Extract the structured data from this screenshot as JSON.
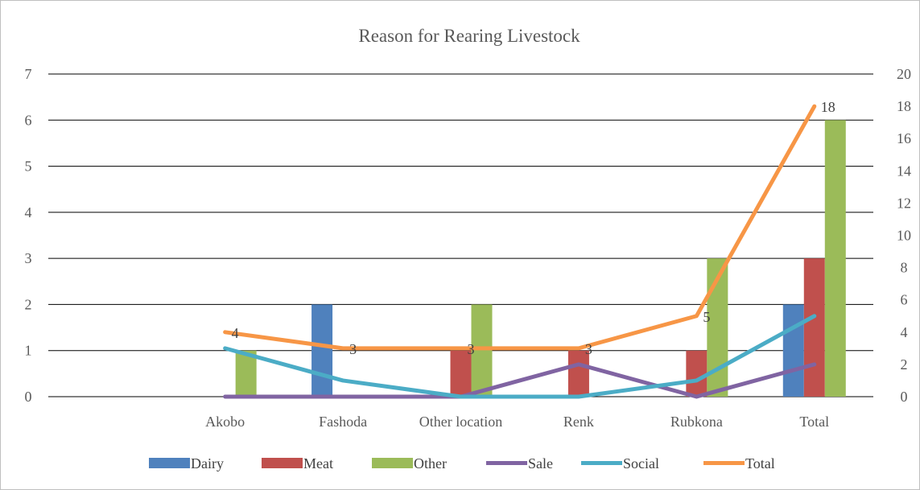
{
  "chart_data": {
    "type": "bar",
    "title": "Reason for Rearing Livestock",
    "categories": [
      "",
      "Akobo",
      "Fashoda",
      "Other location",
      "Renk",
      "Rubkona",
      "Total"
    ],
    "primary_axis": {
      "ylim": [
        0,
        7
      ],
      "ticks": [
        "0",
        "1",
        "2",
        "3",
        "4",
        "5",
        "6",
        "7"
      ]
    },
    "secondary_axis": {
      "ylim": [
        0,
        20
      ],
      "ticks": [
        "0",
        "2",
        "4",
        "6",
        "8",
        "10",
        "12",
        "14",
        "16",
        "18",
        "20"
      ]
    },
    "grid": "horizontal",
    "legend_position": "bottom",
    "series": [
      {
        "name": "Dairy",
        "kind": "bar",
        "axis": "primary",
        "color": "#4F81BD",
        "values": [
          0,
          0,
          2,
          0,
          0,
          0,
          2
        ]
      },
      {
        "name": "Meat",
        "kind": "bar",
        "axis": "primary",
        "color": "#C0504D",
        "values": [
          0,
          0,
          0,
          1,
          1,
          1,
          3
        ]
      },
      {
        "name": "Other",
        "kind": "bar",
        "axis": "primary",
        "color": "#9BBB59",
        "values": [
          0,
          1,
          0,
          2,
          0,
          3,
          6
        ]
      },
      {
        "name": "Sale",
        "kind": "line",
        "axis": "secondary",
        "color": "#8064A2",
        "values": [
          null,
          0,
          0,
          0,
          2,
          0,
          2
        ]
      },
      {
        "name": "Social",
        "kind": "line",
        "axis": "secondary",
        "color": "#4BACC6",
        "values": [
          null,
          3,
          1,
          0,
          0,
          1,
          5
        ]
      },
      {
        "name": "Total",
        "kind": "line",
        "axis": "secondary",
        "color": "#F79646",
        "values": [
          null,
          4,
          3,
          3,
          3,
          5,
          18
        ],
        "data_labels": [
          "",
          "4",
          "3",
          "3",
          "3",
          "5",
          "18"
        ]
      }
    ]
  }
}
